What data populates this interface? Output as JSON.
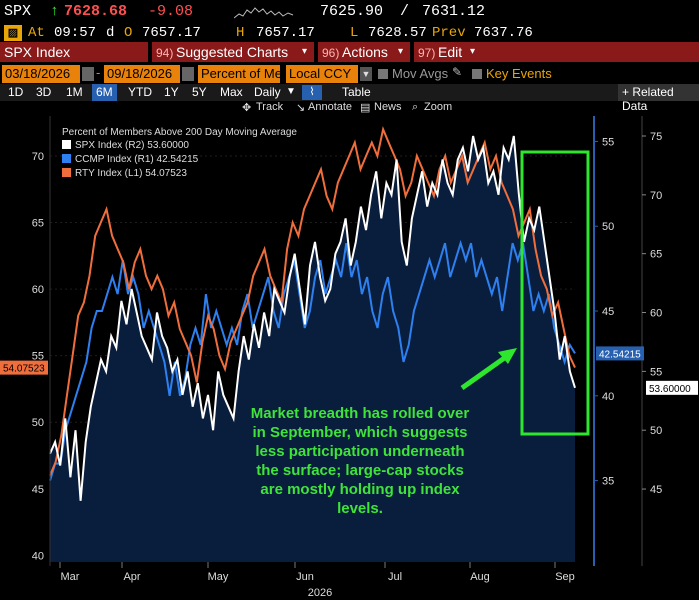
{
  "quote": {
    "ticker": "SPX",
    "arrow": "↑",
    "last": "7628.68",
    "change": "-9.08",
    "bid": "7625.90",
    "sep": "/",
    "ask": "7631.12",
    "at_label": "At",
    "time": "09:57",
    "d_label": "d",
    "o_label": "O",
    "open": "7657.17",
    "h_label": "H",
    "high": "7657.17",
    "l_label": "L",
    "low": "7628.57",
    "prev_label": "Prev",
    "prev": "7637.76"
  },
  "menu": {
    "security": "SPX Index",
    "charts_num": "94)",
    "charts": "Suggested Charts",
    "actions_num": "96)",
    "actions": "Actions",
    "edit_num": "97)",
    "edit": "Edit"
  },
  "params": {
    "start_date": "03/18/2026",
    "end_date": "09/18/2026",
    "mode": "Percent of Me",
    "currency": "Local CCY",
    "mov_avgs": "Mov Avgs",
    "key_events": "Key Events"
  },
  "periods": [
    "1D",
    "3D",
    "1M",
    "6M",
    "YTD",
    "1Y",
    "5Y",
    "Max"
  ],
  "selected_period": "6M",
  "frequency": "Daily",
  "table_label": "Table",
  "related_label": "+ Related Data",
  "tools": {
    "track": "Track",
    "annotate": "Annotate",
    "news": "News",
    "zoom": "Zoom"
  },
  "callout": "Market breadth has rolled over in September, which suggests less participation underneath the surface; large-cap stocks are mostly holding up index levels.",
  "chart_data": {
    "type": "line",
    "title": "Percent of Members Above 200 Day Moving Average",
    "year_label": "2026",
    "x_ticks": [
      "Mar",
      "Apr",
      "May",
      "Jun",
      "Jul",
      "Aug",
      "Sep"
    ],
    "left_axis": {
      "ticks": [
        40,
        45,
        50,
        55,
        60,
        65,
        70
      ],
      "range": [
        39.5,
        73
      ]
    },
    "r1_axis": {
      "ticks": [
        35,
        40,
        45,
        50,
        55
      ],
      "range": [
        30.2,
        56.5
      ]
    },
    "r2_axis": {
      "ticks": [
        45,
        50,
        55,
        60,
        65,
        70,
        75
      ],
      "range": [
        38.8,
        76.7
      ]
    },
    "series": [
      {
        "name": "SPX Index",
        "axis": "R2",
        "legend": "SPX Index   (R2)   53.60000",
        "last_label": "53.60000",
        "color": "#ffffff",
        "values": [
          48,
          49,
          47,
          51,
          46,
          50,
          44,
          49,
          52,
          54,
          56,
          55,
          58,
          57,
          61,
          59,
          62,
          60,
          58,
          57,
          56,
          60,
          58,
          57,
          55,
          56,
          53,
          55,
          52,
          54,
          51,
          53,
          50,
          55,
          53,
          52,
          51,
          55,
          58,
          56,
          59,
          57,
          60,
          58,
          62,
          61,
          60,
          63,
          65,
          62,
          59,
          64,
          66,
          63,
          61,
          62,
          65,
          66,
          68,
          64,
          66,
          69,
          67,
          70,
          72,
          68,
          71,
          70,
          73,
          66,
          64,
          68,
          70,
          72,
          69,
          71,
          70,
          73,
          71,
          70,
          73,
          74,
          72,
          75,
          73,
          74,
          71,
          72,
          70,
          74,
          73,
          75,
          70,
          66,
          68,
          67,
          69,
          66,
          63,
          60,
          56,
          58,
          55,
          53.6
        ]
      },
      {
        "name": "CCMP Index",
        "axis": "R1",
        "legend": "CCMP Index   (R1)   42.54215",
        "last_label": "42.54215",
        "color": "#2e80f0",
        "values": [
          35,
          36,
          36,
          38,
          39,
          40,
          41,
          42,
          44,
          45,
          45,
          46,
          47,
          46,
          48,
          46,
          47,
          46,
          44,
          45,
          44,
          43,
          42,
          40,
          42,
          40,
          41,
          43,
          44,
          43,
          46,
          44,
          45,
          44,
          43,
          44,
          43,
          45,
          46,
          44,
          45,
          46,
          47,
          45,
          44,
          46,
          47,
          48,
          46,
          44,
          45,
          47,
          48,
          46,
          47,
          48,
          47,
          49,
          47,
          48,
          46,
          47,
          45,
          44,
          46,
          47,
          45,
          44,
          42,
          43,
          45,
          46,
          47,
          48,
          47,
          48,
          49,
          47,
          48,
          49,
          48,
          49,
          47,
          48,
          47,
          46,
          47,
          45,
          47,
          49,
          48,
          49,
          47,
          45,
          46,
          45,
          46,
          44,
          43,
          42,
          43,
          42.5
        ]
      },
      {
        "name": "RTY Index",
        "axis": "L1",
        "legend": "RTY Index   (L1)   54.07523",
        "last_label": "54.07523",
        "color": "#f06e3c",
        "values": [
          46,
          47,
          49,
          52,
          55,
          58,
          59,
          61,
          64,
          65,
          66,
          64,
          63,
          62,
          60,
          62,
          63,
          61,
          60,
          61,
          60,
          58,
          59,
          57,
          56,
          55,
          53,
          56,
          58,
          57,
          55,
          54,
          56,
          57,
          58,
          59,
          61,
          62,
          63,
          61,
          60,
          59,
          63,
          65,
          64,
          66,
          67,
          68,
          69,
          67,
          66,
          68,
          69,
          70,
          71,
          69,
          70,
          71,
          70,
          72,
          71,
          70,
          69,
          67,
          68,
          70,
          69,
          68,
          67,
          69,
          70,
          68,
          69,
          70,
          68,
          69,
          70,
          71,
          69,
          70,
          68,
          67,
          66,
          64,
          65,
          66,
          63,
          61,
          60,
          58,
          59,
          57,
          55,
          54.1
        ]
      }
    ]
  }
}
